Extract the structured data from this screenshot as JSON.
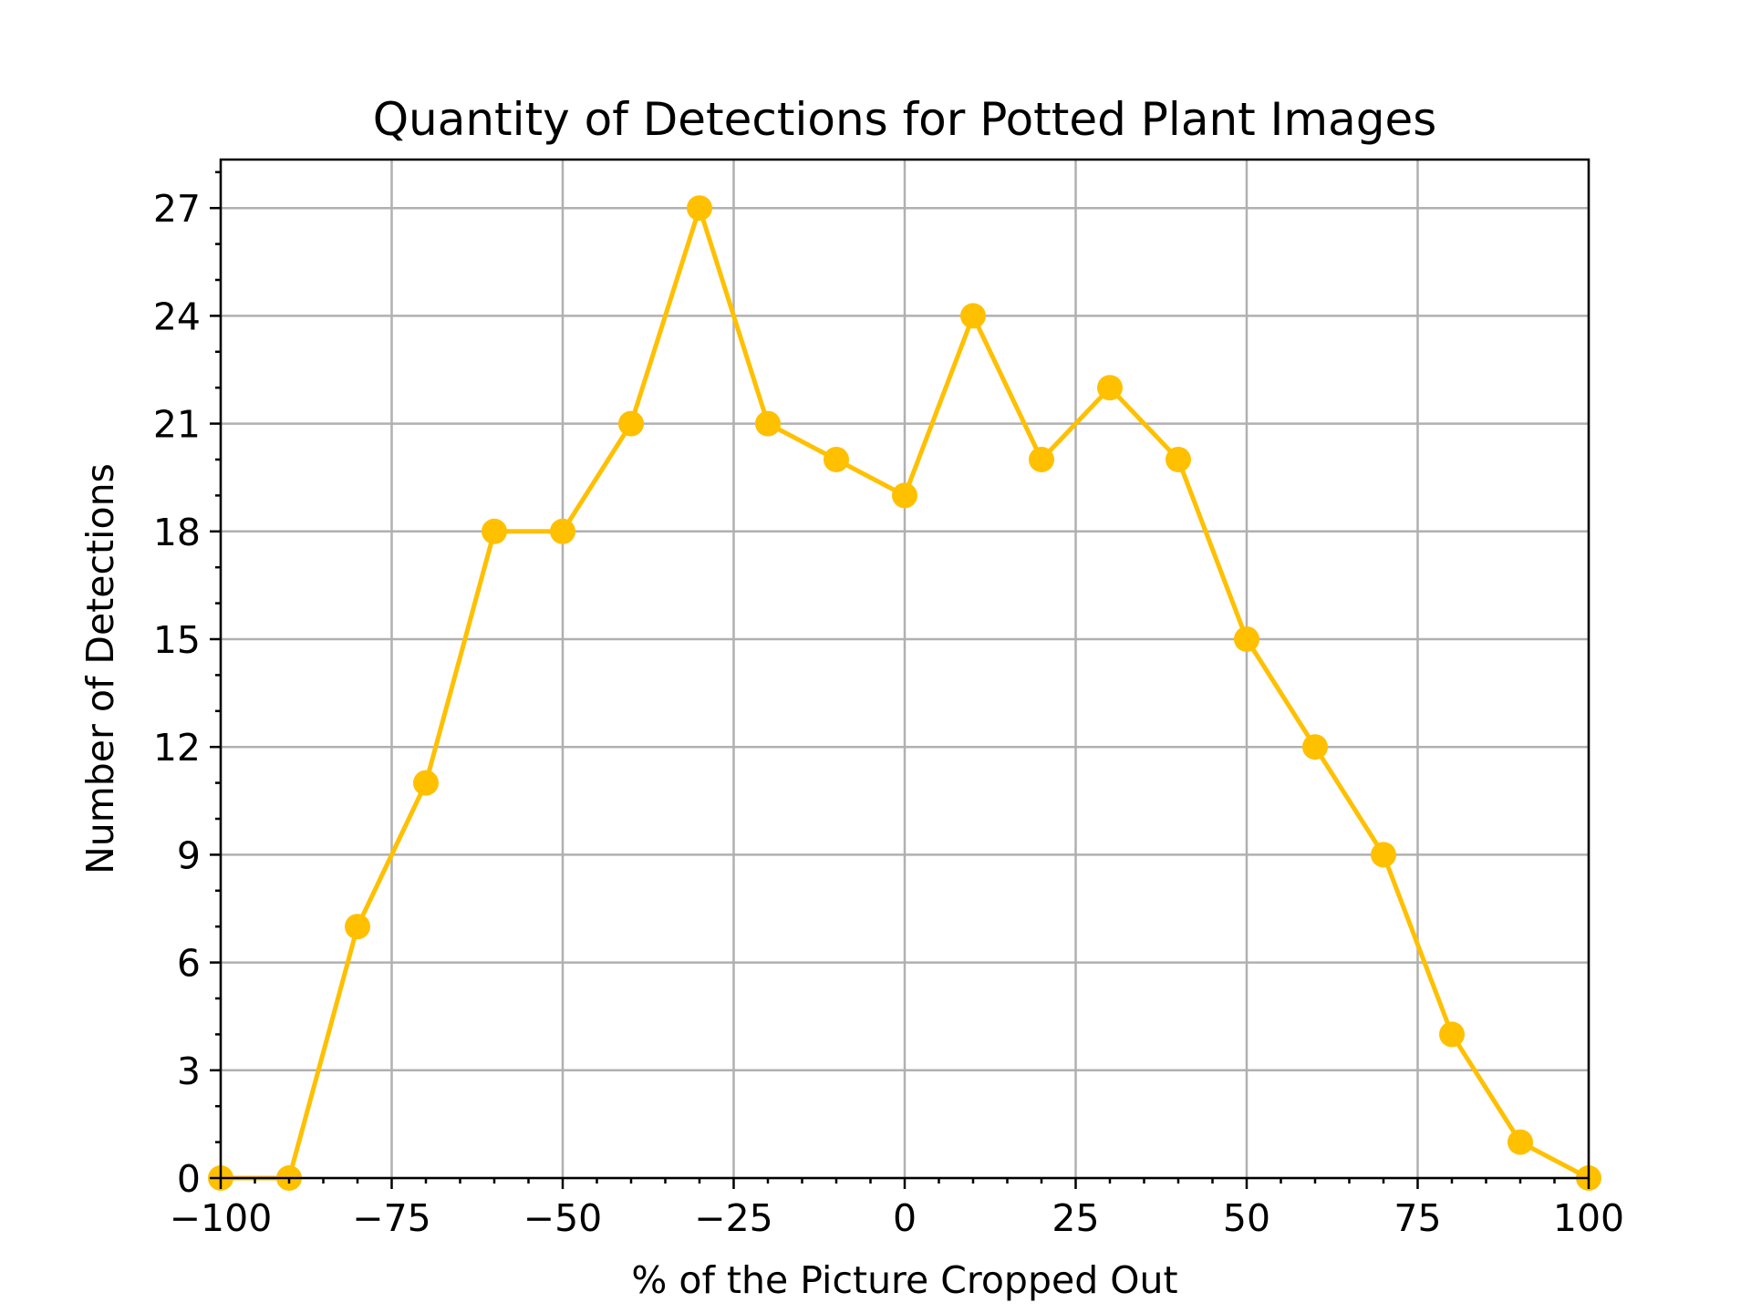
{
  "chart_data": {
    "type": "line",
    "title": "Quantity of Detections for Potted Plant Images",
    "xlabel": "% of the Picture Cropped Out",
    "ylabel": "Number of Detections",
    "xlim": [
      -100,
      100
    ],
    "ylim": [
      0,
      28.35
    ],
    "xticks": [
      -100,
      -75,
      -50,
      -25,
      0,
      25,
      50,
      75,
      100
    ],
    "xtick_labels": [
      "−100",
      "−75",
      "−50",
      "−25",
      "0",
      "25",
      "50",
      "75",
      "100"
    ],
    "yticks": [
      0,
      3,
      6,
      9,
      12,
      15,
      18,
      21,
      24,
      27
    ],
    "ytick_labels": [
      "0",
      "3",
      "6",
      "9",
      "12",
      "15",
      "18",
      "21",
      "24",
      "27"
    ],
    "grid": true,
    "x": [
      -100,
      -90,
      -80,
      -70,
      -60,
      -50,
      -40,
      -30,
      -20,
      -10,
      0,
      10,
      20,
      30,
      40,
      50,
      60,
      70,
      80,
      90,
      100
    ],
    "series": [
      {
        "values": [
          0,
          0,
          7,
          11,
          18,
          18,
          21,
          27,
          21,
          20,
          19,
          24,
          20,
          22,
          20,
          15,
          12,
          9,
          4,
          1,
          0
        ],
        "color": "#ffc000",
        "marker": "circle"
      }
    ]
  }
}
